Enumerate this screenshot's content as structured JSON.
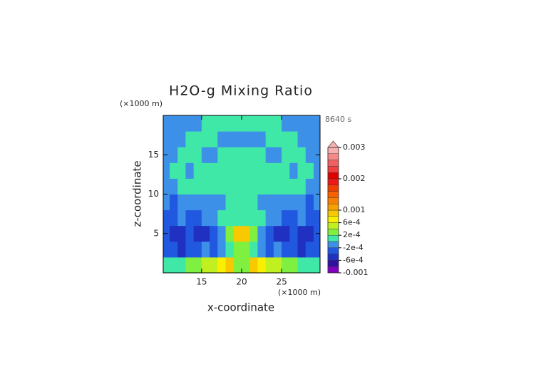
{
  "chart_data": {
    "type": "contour",
    "title": "H2O-g Mixing Ratio",
    "time_label": "8640 s",
    "x_label": "x-coordinate",
    "y_label": "z-coordinate",
    "x_unit": "(×1000 m)",
    "y_unit": "(×1000 m)",
    "xlim": [
      10.2,
      29.8
    ],
    "ylim": [
      0,
      20
    ],
    "xticks": [
      15,
      20,
      25
    ],
    "yticks": [
      5,
      10,
      15
    ],
    "x": [
      10.5,
      11.5,
      12.5,
      13.5,
      14.5,
      15.5,
      16.5,
      17.5,
      18.5,
      19.5,
      20.5,
      21.5,
      22.5,
      23.5,
      24.5,
      25.5,
      26.5,
      27.5,
      28.5,
      29.5
    ],
    "y": [
      1,
      3,
      5,
      7,
      9,
      11,
      13,
      15,
      17,
      19
    ],
    "z": [
      [
        0.0001,
        0.0001,
        0.0001,
        0.0003,
        0.0003,
        0.0005,
        0.0005,
        0.0007,
        0.0009,
        0.0003,
        0.0003,
        0.0009,
        0.0007,
        0.0005,
        0.0005,
        0.0003,
        0.0003,
        0.0001,
        0.0001,
        0.0001
      ],
      [
        -0.0003,
        -0.0003,
        -0.0005,
        -0.0003,
        -0.0003,
        -0.0001,
        -0.0003,
        -0.0001,
        0.0001,
        0.0003,
        0.0003,
        0.0001,
        -0.0001,
        -0.0003,
        -0.0001,
        -0.0003,
        -0.0003,
        -0.0005,
        -0.0003,
        -0.0003
      ],
      [
        -0.0003,
        -0.0005,
        -0.0005,
        -0.0003,
        -0.0005,
        -0.0005,
        -0.0003,
        -0.0001,
        0.0003,
        0.0009,
        0.0009,
        0.0003,
        -0.0001,
        -0.0003,
        -0.0005,
        -0.0005,
        -0.0003,
        -0.0005,
        -0.0005,
        -0.0003
      ],
      [
        -0.0003,
        -0.0003,
        -0.0001,
        -0.0003,
        -0.0003,
        -0.0001,
        -0.0001,
        0.0001,
        0.0001,
        0.0001,
        0.0001,
        0.0001,
        0.0001,
        -0.0001,
        -0.0001,
        -0.0003,
        -0.0003,
        -0.0001,
        -0.0003,
        -0.0003
      ],
      [
        -0.0001,
        -0.0003,
        -0.0001,
        -0.0001,
        -0.0001,
        -0.0001,
        -0.0001,
        -0.0001,
        0.0001,
        0.0001,
        0.0001,
        0.0001,
        -0.0001,
        -0.0001,
        -0.0001,
        -0.0001,
        -0.0001,
        -0.0001,
        -0.0003,
        -0.0001
      ],
      [
        -0.0001,
        -0.0001,
        0.0001,
        0.0001,
        0.0001,
        0.0001,
        0.0001,
        0.0001,
        0.0001,
        0.0001,
        0.0001,
        0.0001,
        0.0001,
        0.0001,
        0.0001,
        0.0001,
        0.0001,
        0.0001,
        -0.0001,
        -0.0001
      ],
      [
        -0.0001,
        0.0001,
        0.0001,
        -0.0001,
        0.0001,
        0.0001,
        0.0001,
        0.0001,
        0.0001,
        0.0001,
        0.0001,
        0.0001,
        0.0001,
        0.0001,
        0.0001,
        0.0001,
        -0.0001,
        0.0001,
        0.0001,
        -0.0001
      ],
      [
        -0.0001,
        -0.0001,
        0.0001,
        0.0001,
        0.0001,
        -0.0001,
        -0.0001,
        0.0001,
        0.0001,
        0.0001,
        0.0001,
        0.0001,
        0.0001,
        -0.0001,
        -0.0001,
        0.0001,
        0.0001,
        0.0001,
        -0.0001,
        -0.0001
      ],
      [
        -0.0001,
        -0.0001,
        -0.0001,
        0.0001,
        0.0001,
        0.0001,
        0.0001,
        -0.0001,
        -0.0001,
        -0.0001,
        -0.0001,
        -0.0001,
        -0.0001,
        0.0001,
        0.0001,
        0.0001,
        0.0001,
        -0.0001,
        -0.0001,
        -0.0001
      ],
      [
        -0.0001,
        -0.0001,
        -0.0001,
        -0.0001,
        -0.0001,
        0.0001,
        0.0001,
        0.0001,
        0.0001,
        0.0001,
        0.0001,
        0.0001,
        0.0001,
        0.0001,
        0.0001,
        -0.0001,
        -0.0001,
        -0.0001,
        -0.0001,
        -0.0001
      ]
    ],
    "colorbar": {
      "levels": [
        -0.001,
        -0.0008,
        -0.0006,
        -0.0004,
        -0.0002,
        0,
        0.0002,
        0.0004,
        0.0006,
        0.0008,
        0.001,
        0.0012,
        0.0014,
        0.0016,
        0.0018,
        0.002,
        0.0022,
        0.0024,
        0.0026,
        0.0028,
        0.003
      ],
      "colors": [
        "#8000c0",
        "#3010a0",
        "#2030c0",
        "#2058e0",
        "#3c90e8",
        "#40e8a8",
        "#80f040",
        "#c0f020",
        "#f8f000",
        "#f8c800",
        "#f8a000",
        "#f88000",
        "#f86000",
        "#f04000",
        "#f01818",
        "#e00000",
        "#f04040",
        "#f06060",
        "#f88888",
        "#f8b0b0"
      ],
      "extend": "max",
      "ticks": [
        -0.001,
        {
          "value": -0.0006,
          "label": "-6e-4"
        },
        {
          "value": -0.0002,
          "label": "-2e-4"
        },
        {
          "value": 0.0002,
          "label": "2e-4"
        },
        {
          "value": 0.0006,
          "label": "6e-4"
        },
        0.001,
        0.002,
        0.003
      ]
    }
  }
}
